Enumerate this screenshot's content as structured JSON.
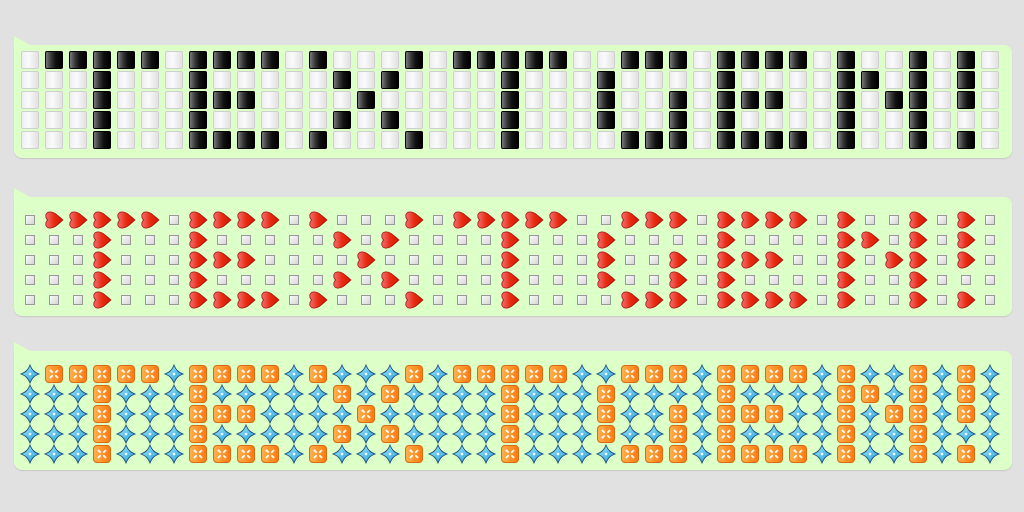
{
  "pattern": [
    ".#####.####.#...#.#####..###.####.#..#.#.",
    "...#...#.....#.#....#...#....#....##.#.#.",
    "...#...###....#.....#...#..#.###..#.##.#.",
    "...#...#.....#.#....#...#..#.#....#..#...",
    "...#...####.#...#...#....###.####.#..#.#."
  ],
  "messages": [
    {
      "on_icon": "black-square-button-icon",
      "off_icon": "white-square-button-icon"
    },
    {
      "on_icon": "heart-icon",
      "off_icon": "small-white-square-icon"
    },
    {
      "on_icon": "orange-square-icon",
      "off_icon": "blue-diamond-icon"
    }
  ],
  "colors": {
    "bubble": "#ddffc8",
    "background": "#e1e1e1",
    "heart": "#e02010",
    "orange": "#ff7a10",
    "diamond": "#3cc0f0"
  }
}
